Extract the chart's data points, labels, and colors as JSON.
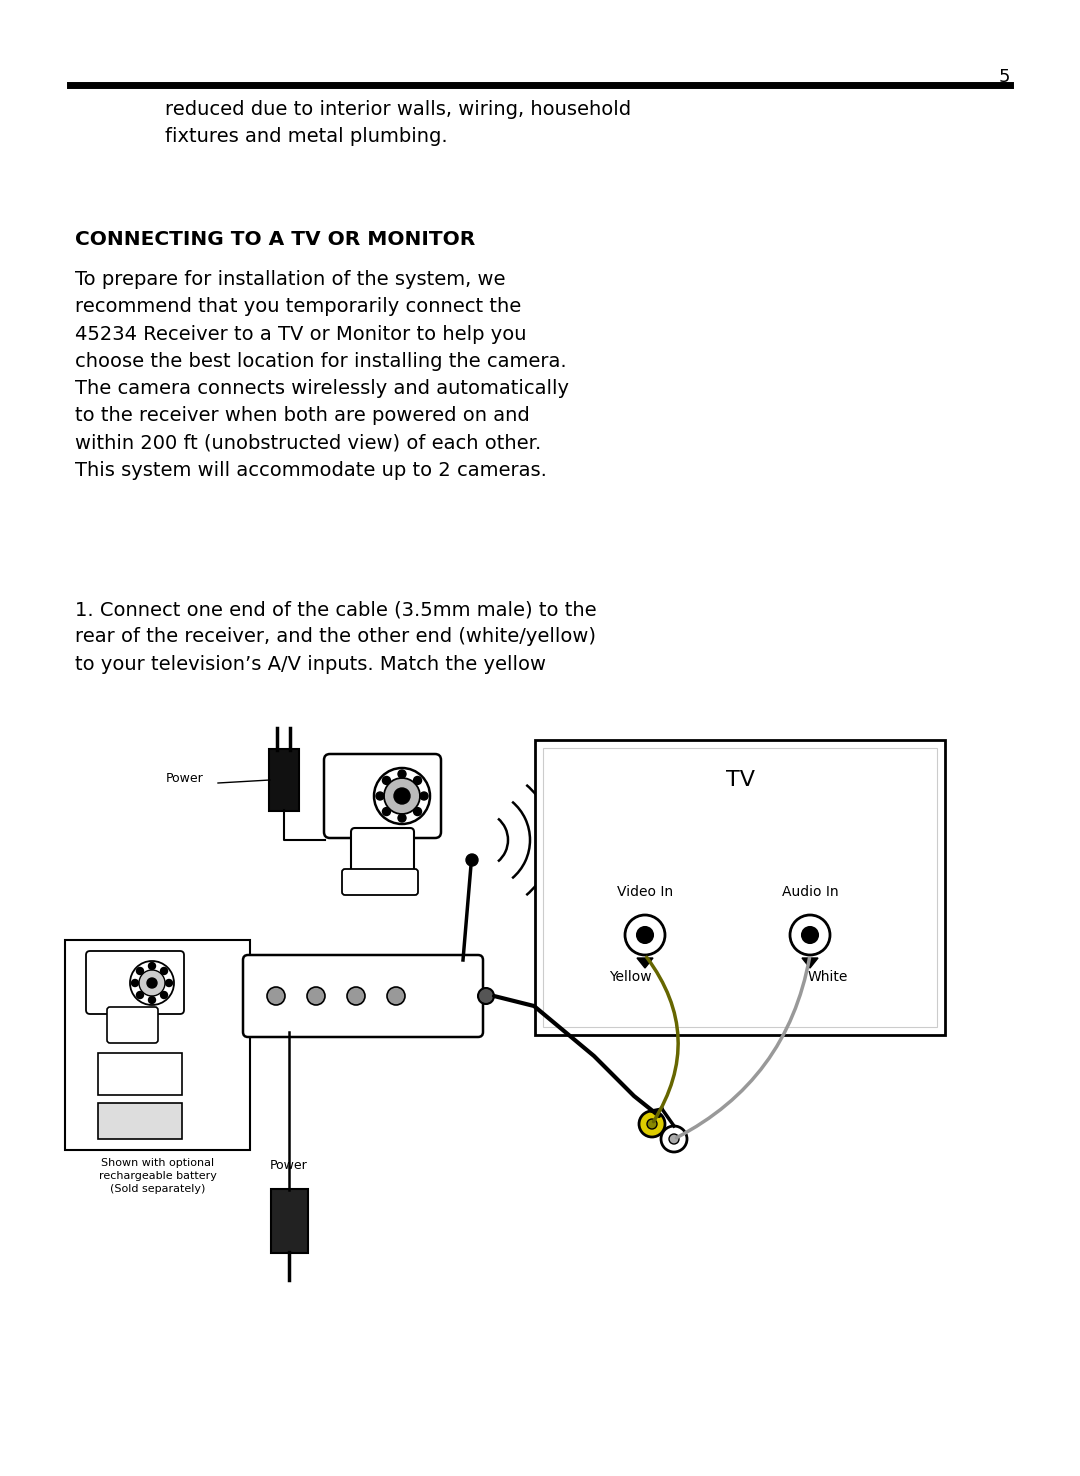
{
  "page_number": "5",
  "bg_color": "#ffffff",
  "text_color": "#000000",
  "header_line_color": "#000000",
  "intro_text": "    reduced due to interior walls, wiring, household\n    fixtures and metal plumbing.",
  "section_title": "CONNECTING TO A TV OR MONITOR",
  "body_text1": "To prepare for installation of the system, we\nrecommend that you temporarily connect the\n45234 Receiver to a TV or Monitor to help you\nchoose the best location for installing the camera.\nThe camera connects wirelessly and automatically\nto the receiver when both are powered on and\nwithin 200 ft (unobstructed view) of each other.\nThis system will accommodate up to 2 cameras.",
  "step_text": "1. Connect one end of the cable (3.5mm male) to the\nrear of the receiver, and the other end (white/yellow)\nto your television’s A/V inputs. Match the yellow",
  "font_family": "DejaVu Sans",
  "page_num_fontsize": 13,
  "title_fontsize": 14.5,
  "body_fontsize": 14,
  "step_fontsize": 14
}
